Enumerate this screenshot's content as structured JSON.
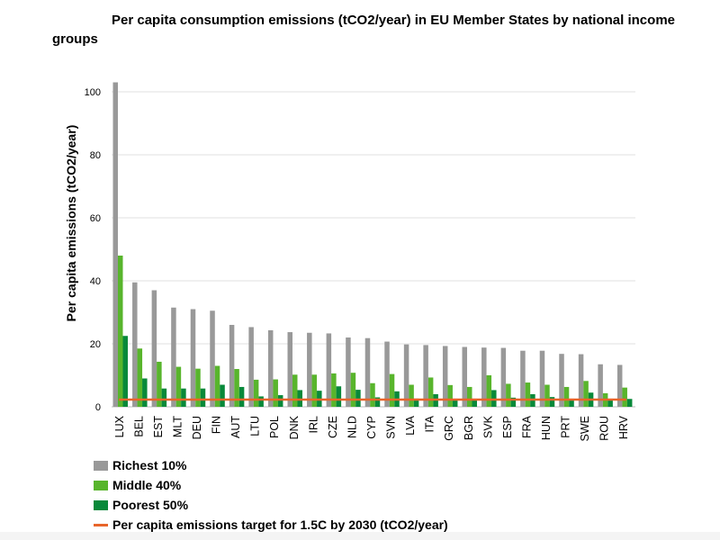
{
  "chart_data": {
    "type": "bar",
    "title": "Per capita consumption emissions (tCO2/year) in EU Member States by national income groups",
    "xlabel": "",
    "ylabel": "Per capita emissions (tCO2/year)",
    "ylim": [
      0,
      100
    ],
    "yticks": [
      0,
      20,
      40,
      60,
      80,
      100
    ],
    "grid": true,
    "legend_position": "bottom-left",
    "categories": [
      "LUX",
      "BEL",
      "EST",
      "MLT",
      "DEU",
      "FIN",
      "AUT",
      "LTU",
      "POL",
      "DNK",
      "IRL",
      "CZE",
      "NLD",
      "CYP",
      "SVN",
      "LVA",
      "ITA",
      "GRC",
      "BGR",
      "SVK",
      "ESP",
      "FRA",
      "HUN",
      "PRT",
      "SWE",
      "ROU",
      "HRV"
    ],
    "series": [
      {
        "name": "Richest 10%",
        "color": "#999999",
        "values": [
          103,
          39.5,
          37,
          31.5,
          31,
          30.5,
          26,
          25.3,
          24.3,
          23.7,
          23.5,
          23.3,
          22,
          21.8,
          20.7,
          19.8,
          19.6,
          19.3,
          19,
          18.8,
          18.7,
          17.8,
          17.8,
          16.8,
          16.7,
          13.5,
          13.3
        ]
      },
      {
        "name": "Middle 40%",
        "color": "#58B52C",
        "values": [
          48,
          18.5,
          14.3,
          12.7,
          12.1,
          13,
          12,
          8.6,
          8.7,
          10.2,
          10.2,
          10.6,
          10.8,
          7.5,
          10.4,
          7,
          9.3,
          6.9,
          6.3,
          10,
          7.3,
          7.7,
          7,
          6.3,
          8.2,
          4.3,
          6.1
        ]
      },
      {
        "name": "Poorest 50%",
        "color": "#08893A",
        "values": [
          22.5,
          9,
          5.8,
          5.8,
          5.8,
          7,
          6.3,
          3.3,
          3.7,
          5.3,
          5.1,
          6.5,
          5.4,
          3,
          4.9,
          2.6,
          4,
          2.5,
          2.5,
          5.3,
          2.9,
          4,
          3.1,
          2.5,
          4.5,
          2,
          2.5
        ]
      }
    ],
    "target_line": {
      "name": "Per capita emissions target for 1.5C by 2030 (tCO2/year)",
      "value": 2.3,
      "color": "#E8652B"
    }
  }
}
